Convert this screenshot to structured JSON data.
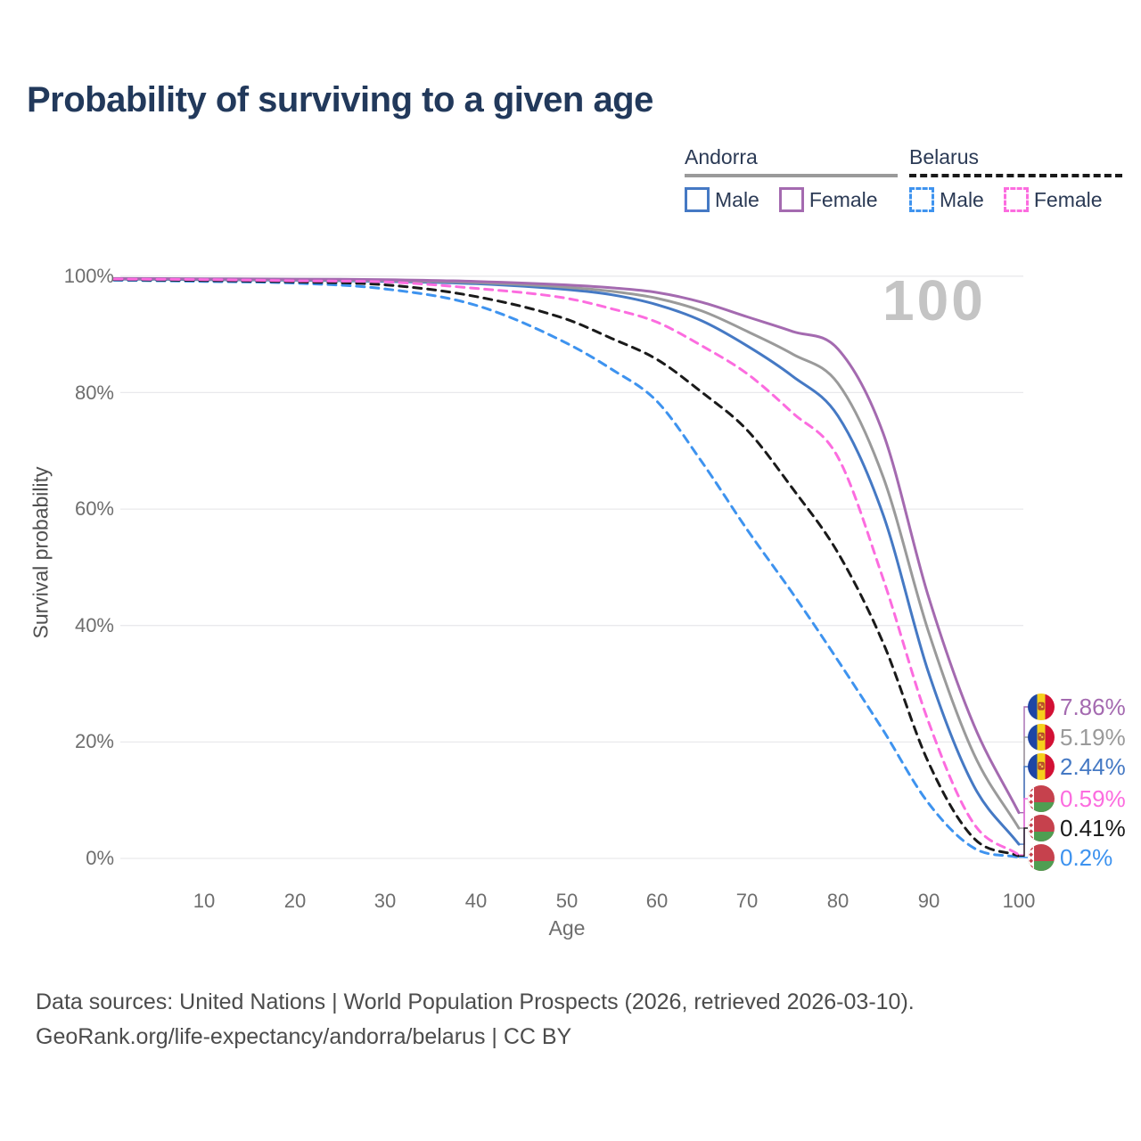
{
  "title": "Probability of surviving to a given age",
  "watermark": "100",
  "legend": {
    "groups": [
      {
        "label": "Andorra",
        "line_style": "solid",
        "line_color": "#9a9a9a",
        "items": [
          {
            "label": "Male",
            "color": "#4579c4",
            "style": "solid"
          },
          {
            "label": "Female",
            "color": "#a46ab0",
            "style": "solid"
          }
        ]
      },
      {
        "label": "Belarus",
        "line_style": "dashed",
        "line_color": "#1a1a1a",
        "items": [
          {
            "label": "Male",
            "color": "#3e93ef",
            "style": "dashed"
          },
          {
            "label": "Female",
            "color": "#fc6cdf",
            "style": "dashed"
          }
        ]
      }
    ]
  },
  "y_axis": {
    "title": "Survival probability",
    "ticks": [
      "100%",
      "80%",
      "60%",
      "40%",
      "20%",
      "0%"
    ],
    "tick_values": [
      100,
      80,
      60,
      40,
      20,
      0
    ],
    "range": [
      0,
      100
    ]
  },
  "x_axis": {
    "title": "Age",
    "ticks": [
      "10",
      "20",
      "30",
      "40",
      "50",
      "60",
      "70",
      "80",
      "90",
      "100"
    ],
    "tick_values": [
      10,
      20,
      30,
      40,
      50,
      60,
      70,
      80,
      90,
      100
    ],
    "range": [
      0,
      100
    ]
  },
  "footer": {
    "line1": "Data sources: United Nations | World Population Prospects (2026, retrieved 2026-03-10).",
    "line2": "GeoRank.org/life-expectancy/andorra/belarus | CC BY"
  },
  "chart_data": {
    "type": "line",
    "title": "Probability of surviving to a given age",
    "xlabel": "Age",
    "ylabel": "Survival probability",
    "xlim": [
      0,
      100
    ],
    "ylim": [
      0,
      100
    ],
    "grid": "horizontal-only",
    "legend_position": "top-right",
    "x": [
      0,
      10,
      20,
      30,
      40,
      50,
      55,
      60,
      65,
      70,
      75,
      80,
      85,
      90,
      95,
      100
    ],
    "series": [
      {
        "id": "andorra-female",
        "country": "Andorra",
        "sex": "Female",
        "flag": "andorra",
        "color": "#a46ab0",
        "dashed": false,
        "end_label": "7.86%",
        "values": [
          99.6,
          99.55,
          99.5,
          99.4,
          99.1,
          98.5,
          98.0,
          97.2,
          95.5,
          93.0,
          90.5,
          87.5,
          73.0,
          45.0,
          23.0,
          7.86
        ]
      },
      {
        "id": "andorra-both-sexes",
        "country": "Andorra",
        "sex": "Both",
        "flag": "andorra",
        "color": "#9a9a9a",
        "dashed": false,
        "end_label": "5.19%",
        "values": [
          99.55,
          99.5,
          99.4,
          99.25,
          98.9,
          98.1,
          97.4,
          96.2,
          94.0,
          90.5,
          86.6,
          81.6,
          65.5,
          39.0,
          18.0,
          5.19
        ]
      },
      {
        "id": "andorra-male",
        "country": "Andorra",
        "sex": "Male",
        "flag": "andorra",
        "color": "#4579c4",
        "dashed": false,
        "end_label": "2.44%",
        "values": [
          99.5,
          99.4,
          99.3,
          99.1,
          98.7,
          97.7,
          96.8,
          95.1,
          92.3,
          88.0,
          82.8,
          76.0,
          59.0,
          32.0,
          12.5,
          2.44
        ]
      },
      {
        "id": "belarus-female",
        "country": "Belarus",
        "sex": "Female",
        "flag": "belarus",
        "color": "#fc6cdf",
        "dashed": true,
        "end_label": "0.59%",
        "values": [
          99.5,
          99.4,
          99.2,
          99.0,
          97.9,
          96.2,
          94.4,
          92.1,
          88.0,
          83.2,
          76.5,
          68.9,
          48.0,
          23.5,
          6.0,
          0.59
        ]
      },
      {
        "id": "belarus-both-sexes",
        "country": "Belarus",
        "sex": "Both",
        "flag": "belarus",
        "color": "#1a1a1a",
        "dashed": true,
        "end_label": "0.41%",
        "values": [
          99.4,
          99.25,
          99.0,
          98.5,
          96.5,
          92.6,
          89.3,
          85.7,
          80.0,
          73.5,
          63.5,
          52.5,
          37.0,
          16.5,
          3.5,
          0.41
        ]
      },
      {
        "id": "belarus-male",
        "country": "Belarus",
        "sex": "Male",
        "flag": "belarus",
        "color": "#3e93ef",
        "dashed": true,
        "end_label": "0.2%",
        "values": [
          99.3,
          99.1,
          98.8,
          97.8,
          95.0,
          88.5,
          84.0,
          78.5,
          68.0,
          56.4,
          45.5,
          34.0,
          22.0,
          9.5,
          1.8,
          0.2
        ]
      }
    ]
  }
}
